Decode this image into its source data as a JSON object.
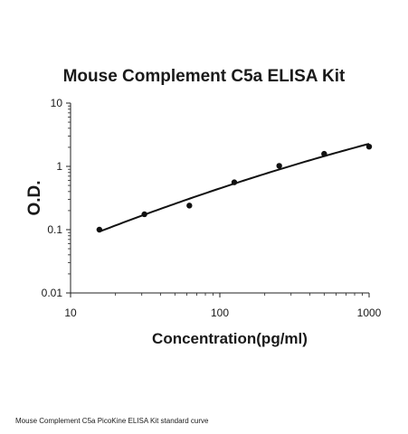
{
  "chart_data": {
    "type": "scatter",
    "title": "Mouse Complement C5a ELISA Kit",
    "xlabel": "Concentration(pg/ml)",
    "ylabel": "O.D.",
    "x_scale": "log",
    "y_scale": "log",
    "xlim": [
      10,
      1000
    ],
    "ylim": [
      0.01,
      10
    ],
    "x_ticks": [
      "10",
      "100",
      "1000"
    ],
    "y_ticks": [
      "0.01",
      "0.1",
      "1",
      "10"
    ],
    "grid": false,
    "series": [
      {
        "points": [
          {
            "x": 15.6,
            "y": 0.1
          },
          {
            "x": 31.25,
            "y": 0.175
          },
          {
            "x": 62.5,
            "y": 0.24
          },
          {
            "x": 125,
            "y": 0.56
          },
          {
            "x": 250,
            "y": 1.02
          },
          {
            "x": 500,
            "y": 1.58
          },
          {
            "x": 1000,
            "y": 2.05
          }
        ],
        "fit_curve": "smooth"
      }
    ]
  },
  "caption": "Mouse Complement C5a PicoKine ELISA Kit standard curve"
}
